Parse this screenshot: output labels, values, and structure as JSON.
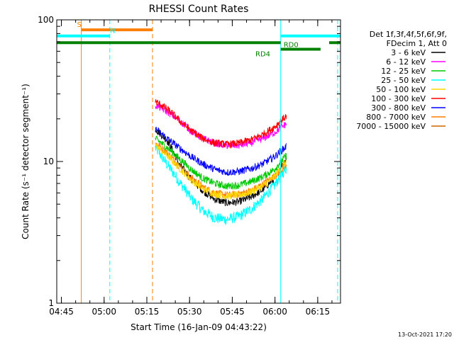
{
  "chart_data": {
    "type": "line",
    "title": "RHESSI Count Rates",
    "xlabel": "Start Time (16-Jan-09 04:43:22)",
    "ylabel": "Count Rate (s⁻¹ detector segment⁻¹)",
    "y_scale": "log",
    "ylim": [
      1,
      100
    ],
    "y_ticks": [
      {
        "value": 1,
        "label": "1"
      },
      {
        "value": 10,
        "label": "10"
      },
      {
        "value": 100,
        "label": "100"
      }
    ],
    "x_ticks": [
      "04:45",
      "05:00",
      "05:15",
      "05:30",
      "05:45",
      "06:00",
      "06:15"
    ],
    "xlim": [
      "04:43:22",
      "06:23:00"
    ],
    "legend_placement": "right",
    "legend_header": [
      "Det 1f,3f,4f,5f,6f,9f,",
      "FDecim 1, Att 0"
    ],
    "footer_date": "13-Oct-2021 17:20",
    "time_start": "05:18:00",
    "time_end": "06:04:00",
    "series": [
      {
        "name": "3 - 6 keV",
        "color": "#000000",
        "values": [
          17.0,
          14.0,
          9.5,
          7.5,
          6.2,
          5.4,
          5.1,
          5.2,
          5.6,
          6.3,
          7.6,
          10.5
        ]
      },
      {
        "name": "6 - 12 keV",
        "color": "#ff00ff",
        "values": [
          25.0,
          22.5,
          19.5,
          16.5,
          14.5,
          13.5,
          13.0,
          13.0,
          13.5,
          14.5,
          16.0,
          18.5
        ]
      },
      {
        "name": "12 - 25 keV",
        "color": "#00c800",
        "values": [
          14.5,
          12.5,
          10.5,
          8.8,
          7.6,
          7.0,
          6.7,
          6.8,
          7.2,
          7.8,
          8.8,
          11.0
        ]
      },
      {
        "name": "25 - 50 keV",
        "color": "#00ffff",
        "values": [
          12.5,
          9.5,
          7.2,
          5.5,
          4.5,
          4.0,
          3.9,
          4.1,
          4.6,
          5.4,
          6.8,
          9.0
        ]
      },
      {
        "name": "50 - 100 keV",
        "color": "#ffd700",
        "values": [
          13.0,
          11.0,
          9.0,
          7.4,
          6.4,
          5.9,
          5.7,
          5.8,
          6.1,
          6.7,
          7.8,
          10.0
        ]
      },
      {
        "name": "100 - 300 keV",
        "color": "#ff0000",
        "values": [
          26.5,
          23.5,
          19.5,
          16.5,
          14.5,
          13.5,
          13.2,
          13.5,
          14.2,
          15.5,
          17.5,
          21.0
        ]
      },
      {
        "name": "300 - 800 keV",
        "color": "#0000ff",
        "values": [
          17.0,
          14.5,
          12.5,
          10.8,
          9.6,
          8.8,
          8.4,
          8.5,
          8.9,
          9.6,
          10.8,
          12.8
        ]
      },
      {
        "name": "800 - 7000 keV",
        "color": "#ff7f00",
        "values": [
          13.5,
          11.5,
          9.3,
          7.7,
          6.6,
          6.0,
          5.8,
          5.9,
          6.2,
          6.9,
          7.9,
          9.3
        ]
      },
      {
        "name": "7000 - 15000 keV",
        "color": "#cc6600",
        "values": []
      }
    ],
    "flag_bars": [
      {
        "label": "S",
        "color": "#ff7f00",
        "start": "04:52:00",
        "end": "05:17:00",
        "value": 85
      },
      {
        "label": "N",
        "color": "#00ffff",
        "start": "04:43:22",
        "end": "05:02:00",
        "value": 77
      },
      {
        "label": "",
        "color": "#00ffff",
        "start": "06:02:00",
        "end": "06:23:00",
        "value": 77
      },
      {
        "label": "",
        "color": "#008000",
        "start": "04:43:22",
        "end": "06:02:00",
        "value": 69
      },
      {
        "label": "RD0",
        "color": "#008000",
        "start": "06:02:00",
        "end": "06:16:00",
        "value": 62
      },
      {
        "label": "",
        "color": "#008000",
        "start": "06:19:00",
        "end": "06:23:00",
        "value": 69
      },
      {
        "label": "RD4",
        "color": "#008000",
        "start": "",
        "end": "",
        "value": 62
      }
    ],
    "vlines": [
      {
        "time": "04:43:22",
        "color": "#00ffff",
        "style": "solid"
      },
      {
        "time": "04:52:00",
        "color": "#ff7f00",
        "style": "solid"
      },
      {
        "time": "05:02:00",
        "color": "#00ffff",
        "style": "dashed"
      },
      {
        "time": "05:17:00",
        "color": "#ff7f00",
        "style": "dashed"
      },
      {
        "time": "06:02:00",
        "color": "#00ffff",
        "style": "solid"
      },
      {
        "time": "06:22:00",
        "color": "#00ffff",
        "style": "dashed"
      }
    ]
  }
}
